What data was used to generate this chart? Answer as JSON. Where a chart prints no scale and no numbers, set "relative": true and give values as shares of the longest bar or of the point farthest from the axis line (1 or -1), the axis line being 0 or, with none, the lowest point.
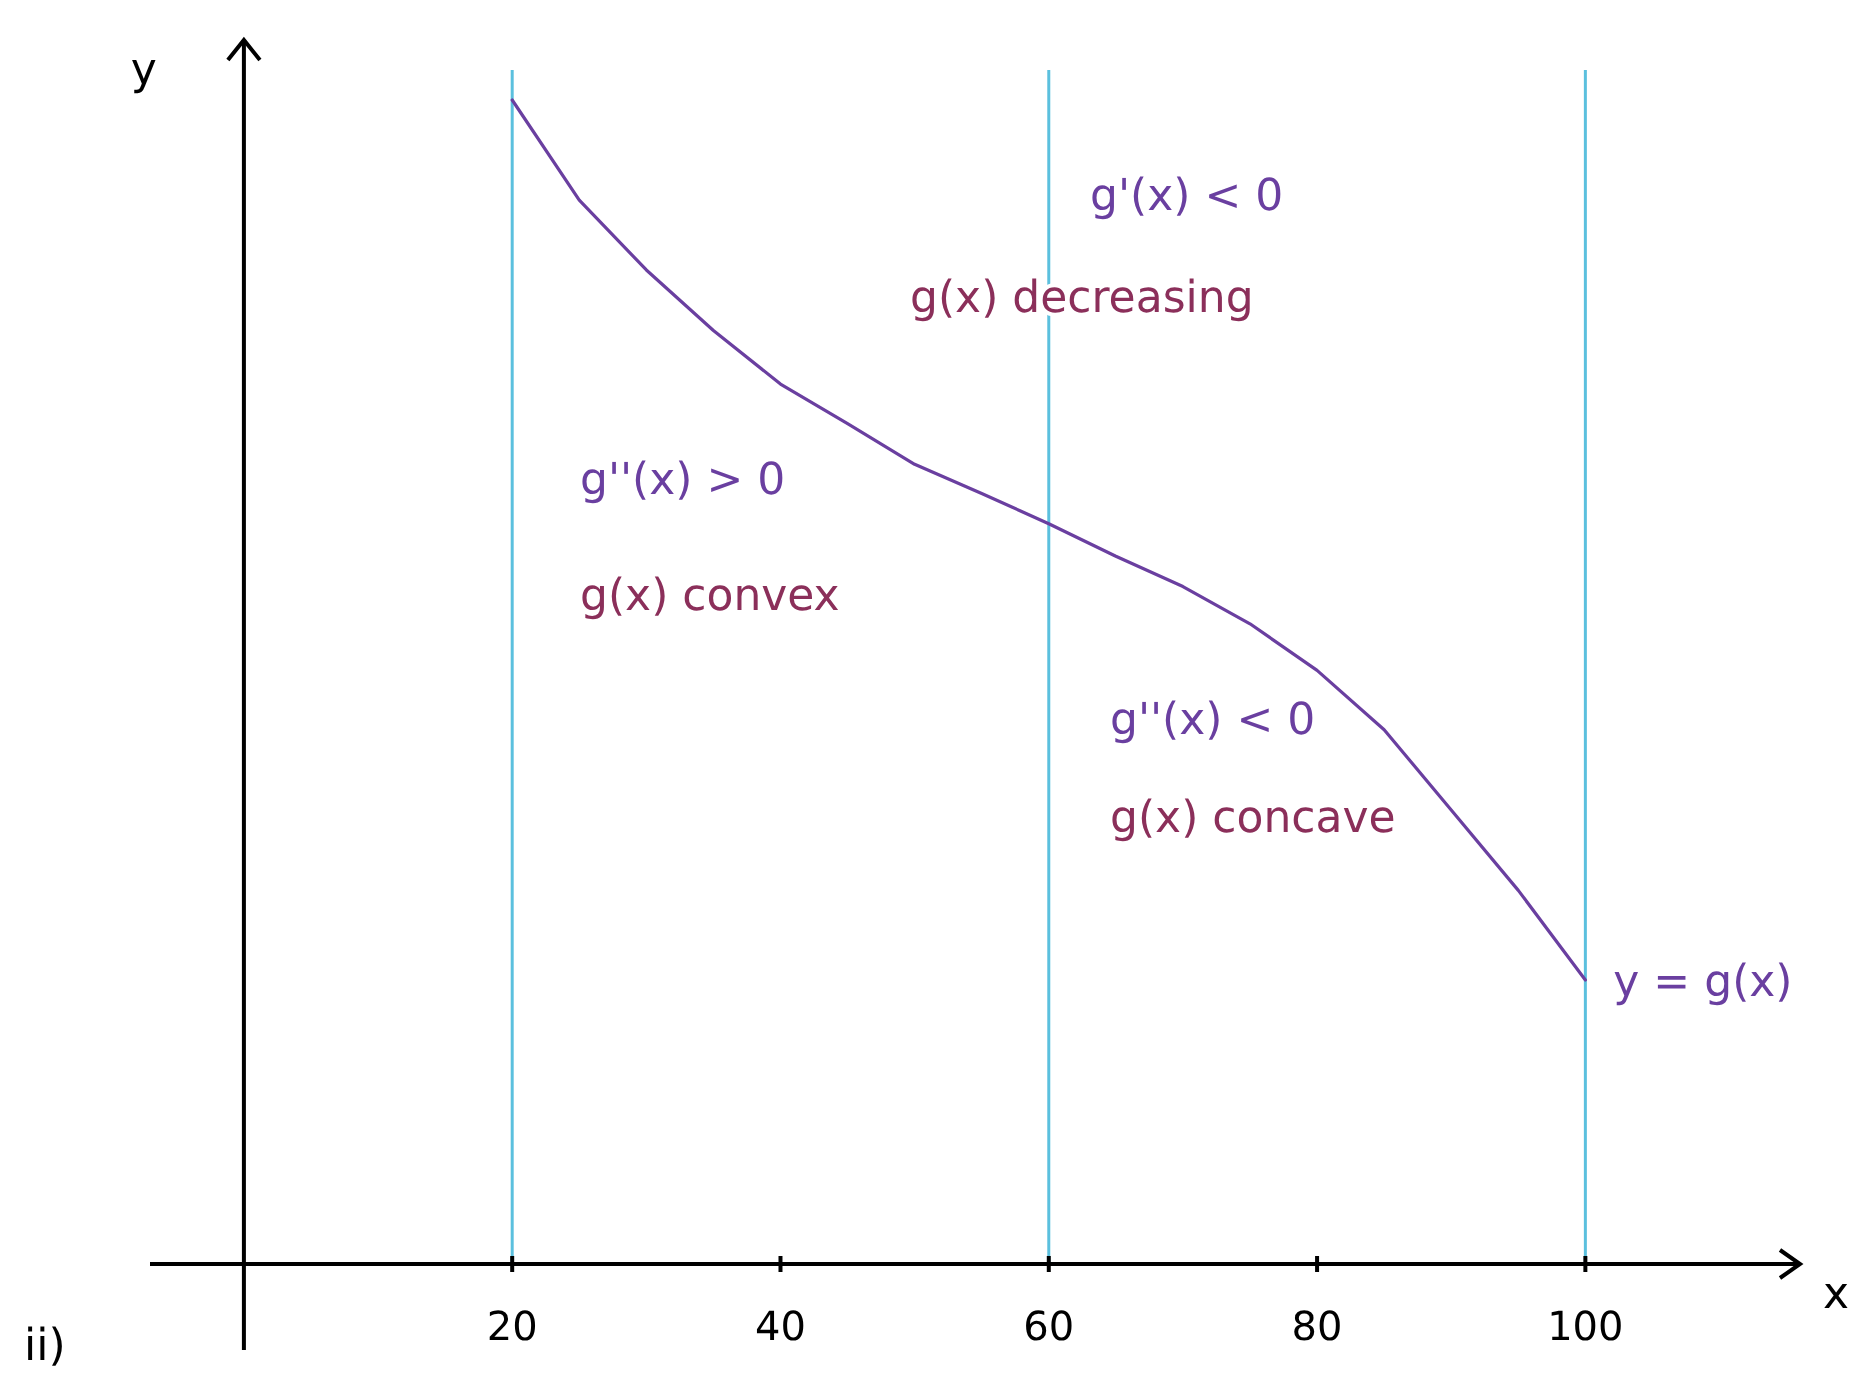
{
  "chart_data": {
    "type": "line",
    "relative": true,
    "xlabel": "x",
    "ylabel": "y",
    "x": [
      20,
      25,
      30,
      35,
      40,
      45,
      50,
      55,
      60,
      65,
      70,
      75,
      80,
      85,
      90,
      95,
      100
    ],
    "series": [
      {
        "color": "#6a3fa0",
        "values": [
          1,
          0.914,
          0.854,
          0.802,
          0.756,
          0.722,
          0.687,
          0.662,
          0.636,
          0.608,
          0.582,
          0.55,
          0.51,
          0.459,
          0.39,
          0.321,
          0.244
        ]
      }
    ],
    "xlim": [
      -7,
      116
    ],
    "xticks": [
      20,
      40,
      60,
      80,
      100
    ],
    "grid": false,
    "marker": "none",
    "line_style": "solid",
    "ref_lines": [
      {
        "axis": "x",
        "value": 20,
        "color": "#5bc0de"
      },
      {
        "axis": "x",
        "value": 60,
        "color": "#5bc0de"
      },
      {
        "axis": "x",
        "value": 100,
        "color": "#5bc0de"
      }
    ],
    "annotations": [
      "g'(x) < 0",
      "g(x) decreasing",
      "g''(x) > 0",
      "g(x) convex",
      "g''(x) < 0",
      "g(x) concave",
      {
        "text": "y = g(x)",
        "x": 100,
        "y": 0.244
      },
      "ii)"
    ]
  }
}
